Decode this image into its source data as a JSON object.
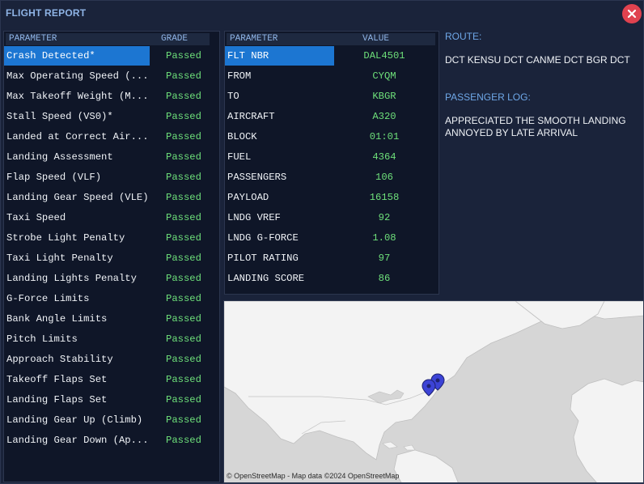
{
  "window": {
    "title": "FLIGHT REPORT"
  },
  "grades": {
    "header_param": "PARAMETER",
    "header_grade": "GRADE",
    "rows": [
      {
        "name": "Crash Detected*",
        "grade": "Passed"
      },
      {
        "name": "Max Operating Speed (...",
        "grade": "Passed"
      },
      {
        "name": "Max Takeoff Weight (M...",
        "grade": "Passed"
      },
      {
        "name": "Stall Speed (VS0)*",
        "grade": "Passed"
      },
      {
        "name": "Landed at Correct Air...",
        "grade": "Passed"
      },
      {
        "name": "Landing Assessment",
        "grade": "Passed"
      },
      {
        "name": "Flap Speed (VLF)",
        "grade": "Passed"
      },
      {
        "name": "Landing Gear Speed (VLE)",
        "grade": "Passed"
      },
      {
        "name": "Taxi Speed",
        "grade": "Passed"
      },
      {
        "name": "Strobe Light Penalty",
        "grade": "Passed"
      },
      {
        "name": "Taxi Light Penalty",
        "grade": "Passed"
      },
      {
        "name": "Landing Lights Penalty",
        "grade": "Passed"
      },
      {
        "name": "G-Force Limits",
        "grade": "Passed"
      },
      {
        "name": "Bank Angle Limits",
        "grade": "Passed"
      },
      {
        "name": "Pitch Limits",
        "grade": "Passed"
      },
      {
        "name": "Approach Stability",
        "grade": "Passed"
      },
      {
        "name": "Takeoff Flaps Set",
        "grade": "Passed"
      },
      {
        "name": "Landing Flaps Set",
        "grade": "Passed"
      },
      {
        "name": "Landing Gear Up (Climb)",
        "grade": "Passed"
      },
      {
        "name": "Landing Gear Down (Ap...",
        "grade": "Passed"
      }
    ]
  },
  "params": {
    "header_param": "PARAMETER",
    "header_value": "VALUE",
    "rows": [
      {
        "name": "FLT NBR",
        "value": "DAL4501"
      },
      {
        "name": "FROM",
        "value": "CYQM"
      },
      {
        "name": "TO",
        "value": "KBGR"
      },
      {
        "name": "AIRCRAFT",
        "value": "A320"
      },
      {
        "name": "BLOCK",
        "value": "01:01"
      },
      {
        "name": "FUEL",
        "value": "4364"
      },
      {
        "name": "PASSENGERS",
        "value": "106"
      },
      {
        "name": "PAYLOAD",
        "value": "16158"
      },
      {
        "name": "LNDG VREF",
        "value": "92"
      },
      {
        "name": "LNDG G-FORCE",
        "value": "1.08"
      },
      {
        "name": "PILOT RATING",
        "value": "97"
      },
      {
        "name": "LANDING SCORE",
        "value": "86"
      }
    ]
  },
  "route": {
    "label": "ROUTE:",
    "text": "DCT KENSU DCT CANME DCT BGR DCT"
  },
  "passenger_log": {
    "label": "PASSENGER LOG:",
    "lines": [
      "APPRECIATED THE SMOOTH LANDING",
      "ANNOYED BY LATE ARRIVAL"
    ]
  },
  "map": {
    "attribution": "© OpenStreetMap - Map data ©2024 OpenStreetMap",
    "marker_color": "#3c43d6"
  },
  "colors": {
    "selected": "#1c76d2",
    "passed": "#6ee07a",
    "accent": "#6fa8e8",
    "close": "#e0424f"
  }
}
